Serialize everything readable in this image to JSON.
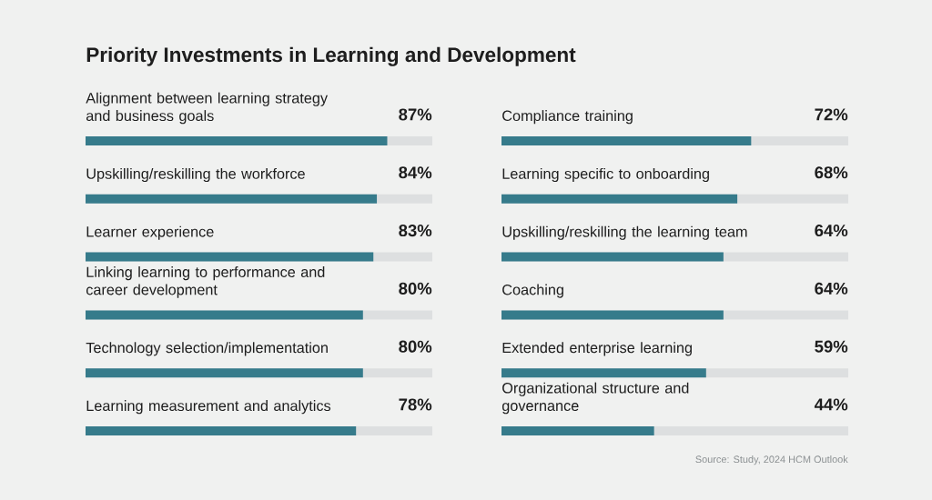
{
  "chart_data": [
    {
      "type": "bar",
      "orientation": "horizontal",
      "title": "Priority Investments in Learning and Development",
      "categories": [
        "Alignment between learning strategy and business goals",
        "Upskilling/reskilling the workforce",
        "Learner experience",
        "Linking learning to performance and career development",
        "Technology selection/implementation",
        "Learning measurement and analytics"
      ],
      "series": [
        {
          "color": "#367b8b",
          "values": [
            87,
            84,
            83,
            80,
            80,
            78
          ],
          "value_labels": [
            "87%",
            "84%",
            "83%",
            "80%",
            "80%",
            "78%"
          ]
        }
      ],
      "xlim": [
        0,
        100
      ],
      "tick_labels": "y",
      "grid": "y"
    },
    {
      "type": "bar",
      "orientation": "horizontal",
      "categories": [
        "Compliance training",
        "Learning specific to onboarding",
        "Upskilling/reskilling the learning team",
        "Coaching",
        "Extended enterprise learning",
        "Organizational structure and governance"
      ],
      "series": [
        {
          "color": "#367b8b",
          "values": [
            72,
            68,
            64,
            64,
            59,
            44
          ],
          "value_labels": [
            "72%",
            "68%",
            "64%",
            "64%",
            "59%",
            "44%"
          ]
        }
      ],
      "xlim": [
        0,
        100
      ],
      "tick_labels": "y",
      "grid": "y",
      "annotations": [
        "Source: Study, 2024 HCM Outlook"
      ]
    }
  ]
}
